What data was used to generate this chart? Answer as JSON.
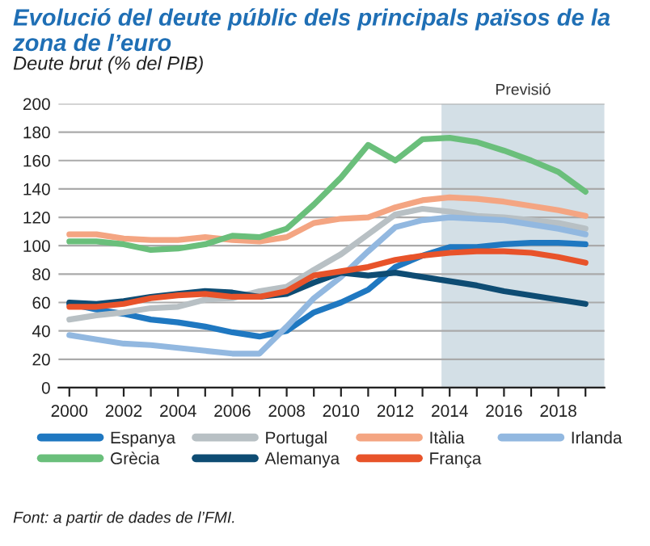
{
  "chart_data": {
    "type": "line",
    "title": "Evolució del deute públic dels principals països de la zona de l’euro",
    "ylabel": "Deute brut (% del PIB)",
    "x": [
      2000,
      2001,
      2002,
      2003,
      2004,
      2005,
      2006,
      2007,
      2008,
      2009,
      2010,
      2011,
      2012,
      2013,
      2014,
      2015,
      2016,
      2017,
      2018,
      2019
    ],
    "series": [
      {
        "name": "Espanya",
        "color": "#1f78c1",
        "values": [
          59,
          55,
          52,
          48,
          46,
          43,
          39,
          36,
          40,
          53,
          60,
          69,
          85,
          93,
          99,
          99,
          101,
          102,
          102,
          101
        ]
      },
      {
        "name": "Portugal",
        "color": "#b8c0c4",
        "values": [
          48,
          51,
          53,
          56,
          57,
          62,
          63,
          68,
          71,
          83,
          94,
          108,
          122,
          126,
          124,
          121,
          120,
          118,
          116,
          112
        ]
      },
      {
        "name": "Itàlia",
        "color": "#f4a582",
        "values": [
          108,
          108,
          105,
          104,
          104,
          106,
          104,
          103,
          106,
          116,
          119,
          120,
          127,
          132,
          134,
          133,
          131,
          128,
          125,
          121
        ]
      },
      {
        "name": "Irlanda",
        "color": "#92b8e0",
        "values": [
          37,
          34,
          31,
          30,
          28,
          26,
          24,
          24,
          43,
          63,
          78,
          96,
          113,
          118,
          120,
          119,
          118,
          115,
          112,
          108
        ]
      },
      {
        "name": "Grècia",
        "color": "#6abf7b",
        "values": [
          103,
          103,
          101,
          97,
          98,
          101,
          107,
          106,
          112,
          129,
          148,
          171,
          160,
          175,
          176,
          173,
          167,
          160,
          152,
          138
        ]
      },
      {
        "name": "Alemanya",
        "color": "#0e4c73",
        "values": [
          60,
          59,
          61,
          64,
          66,
          68,
          67,
          64,
          66,
          74,
          81,
          79,
          81,
          78,
          75,
          72,
          68,
          65,
          62,
          59
        ]
      },
      {
        "name": "França",
        "color": "#e8532a",
        "values": [
          57,
          57,
          59,
          63,
          65,
          66,
          64,
          64,
          68,
          79,
          82,
          85,
          90,
          93,
          95,
          96,
          96,
          95,
          92,
          88
        ]
      }
    ],
    "xlim": [
      1999.6,
      2019.7
    ],
    "xticks": [
      2000,
      {
        "value": 2001,
        "label": null
      },
      2002,
      {
        "value": 2003,
        "label": null
      },
      2004,
      {
        "value": 2005,
        "label": null
      },
      2006,
      {
        "value": 2007,
        "label": null
      },
      2008,
      {
        "value": 2009,
        "label": null
      },
      2010,
      {
        "value": 2011,
        "label": null
      },
      2012,
      {
        "value": 2013,
        "label": null
      },
      2014,
      {
        "value": 2015,
        "label": null
      },
      2016,
      {
        "value": 2017,
        "label": null
      },
      2018,
      {
        "value": 2019,
        "label": null
      }
    ],
    "ylim": [
      0,
      200
    ],
    "yticks": [
      0,
      20,
      40,
      60,
      80,
      100,
      120,
      140,
      160,
      180,
      200
    ],
    "bands": [
      {
        "axis": "x",
        "from": 2013.7,
        "to": 2019.7,
        "label": "Previsió",
        "color": "#d3dfe6"
      }
    ],
    "grid": "y",
    "legend": "bottom",
    "annotations": [
      "Font: a partir de dades de l’FMI."
    ]
  }
}
